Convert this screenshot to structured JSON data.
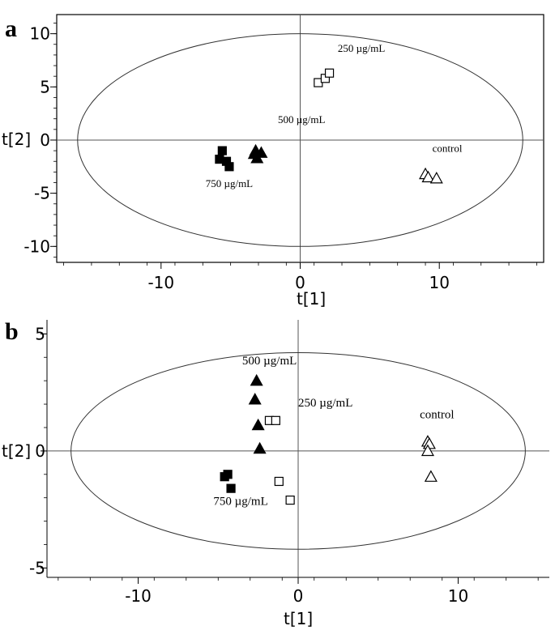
{
  "chart_data": [
    {
      "panel_label": "a",
      "type": "scatter",
      "xlabel": "t[1]",
      "ylabel": "t[2]",
      "xlim": [
        -17.5,
        17.5
      ],
      "ylim": [
        -11.5,
        11.8
      ],
      "xticks": [
        -10,
        0,
        10
      ],
      "xtick_labels": [
        "-10",
        "0",
        "10"
      ],
      "yticks": [
        -10,
        -5,
        0,
        5,
        10
      ],
      "ytick_labels": [
        "-10",
        "-5",
        "0",
        "5",
        "10"
      ],
      "ellipse": {
        "rx": 16.0,
        "ry": 10.0
      },
      "series": [
        {
          "name": "250 µg/mL",
          "marker": "square-open",
          "points": [
            [
              1.3,
              5.4
            ],
            [
              1.8,
              5.8
            ],
            [
              2.1,
              6.3
            ]
          ]
        },
        {
          "name": "500 µg/mL",
          "marker": "triangle-filled",
          "points": [
            [
              -3.2,
              -1.0
            ],
            [
              -2.8,
              -1.2
            ],
            [
              -3.1,
              -1.7
            ],
            [
              -3.3,
              -1.3
            ]
          ]
        },
        {
          "name": "750 µg/mL",
          "marker": "square-filled",
          "points": [
            [
              -5.6,
              -1.0
            ],
            [
              -5.8,
              -1.8
            ],
            [
              -5.3,
              -2.0
            ],
            [
              -5.1,
              -2.5
            ]
          ]
        },
        {
          "name": "control",
          "marker": "triangle-open",
          "points": [
            [
              9.0,
              -3.2
            ],
            [
              9.2,
              -3.5
            ],
            [
              9.8,
              -3.6
            ]
          ]
        }
      ],
      "annotations": [
        {
          "text": "250 µg/mL",
          "x": 2.7,
          "y": 8.3,
          "size": 13
        },
        {
          "text": "500 µg/mL",
          "x": -1.6,
          "y": 1.6,
          "size": 13
        },
        {
          "text": "750 µg/mL",
          "x": -6.8,
          "y": -4.4,
          "size": 13
        },
        {
          "text": "control",
          "x": 9.5,
          "y": -1.1,
          "size": 13
        }
      ]
    },
    {
      "panel_label": "b",
      "type": "scatter",
      "xlabel": "t[1]",
      "ylabel": "t[2]",
      "xlim": [
        -15.7,
        15.7
      ],
      "ylim": [
        -5.4,
        5.6
      ],
      "xticks": [
        -10,
        0,
        10
      ],
      "xtick_labels": [
        "-10",
        "0",
        "10"
      ],
      "yticks": [
        -5,
        0,
        5
      ],
      "ytick_labels": [
        "-5",
        "0",
        "5"
      ],
      "ellipse": {
        "rx": 14.2,
        "ry": 4.2
      },
      "series": [
        {
          "name": "500 µg/mL",
          "marker": "triangle-filled",
          "points": [
            [
              -2.6,
              3.0
            ],
            [
              -2.7,
              2.2
            ],
            [
              -2.5,
              1.1
            ],
            [
              -2.4,
              0.1
            ]
          ]
        },
        {
          "name": "250 µg/mL",
          "marker": "square-open",
          "points": [
            [
              -1.8,
              1.3
            ],
            [
              -1.4,
              1.3
            ],
            [
              -1.2,
              -1.3
            ],
            [
              -0.5,
              -2.1
            ]
          ]
        },
        {
          "name": "750 µg/mL",
          "marker": "square-filled",
          "points": [
            [
              -4.6,
              -1.1
            ],
            [
              -4.4,
              -1.0
            ],
            [
              -4.2,
              -1.6
            ]
          ]
        },
        {
          "name": "control",
          "marker": "triangle-open",
          "points": [
            [
              8.1,
              0.4
            ],
            [
              8.2,
              0.3
            ],
            [
              8.1,
              0.0
            ],
            [
              8.3,
              -1.1
            ]
          ]
        }
      ],
      "annotations": [
        {
          "text": "500 µg/mL",
          "x": -3.5,
          "y": 3.7,
          "size": 15
        },
        {
          "text": "250 µg/mL",
          "x": 0.0,
          "y": 1.9,
          "size": 15
        },
        {
          "text": "control",
          "x": 7.6,
          "y": 1.4,
          "size": 15
        },
        {
          "text": "750 µg/mL",
          "x": -5.3,
          "y": -2.3,
          "size": 15
        }
      ]
    }
  ]
}
